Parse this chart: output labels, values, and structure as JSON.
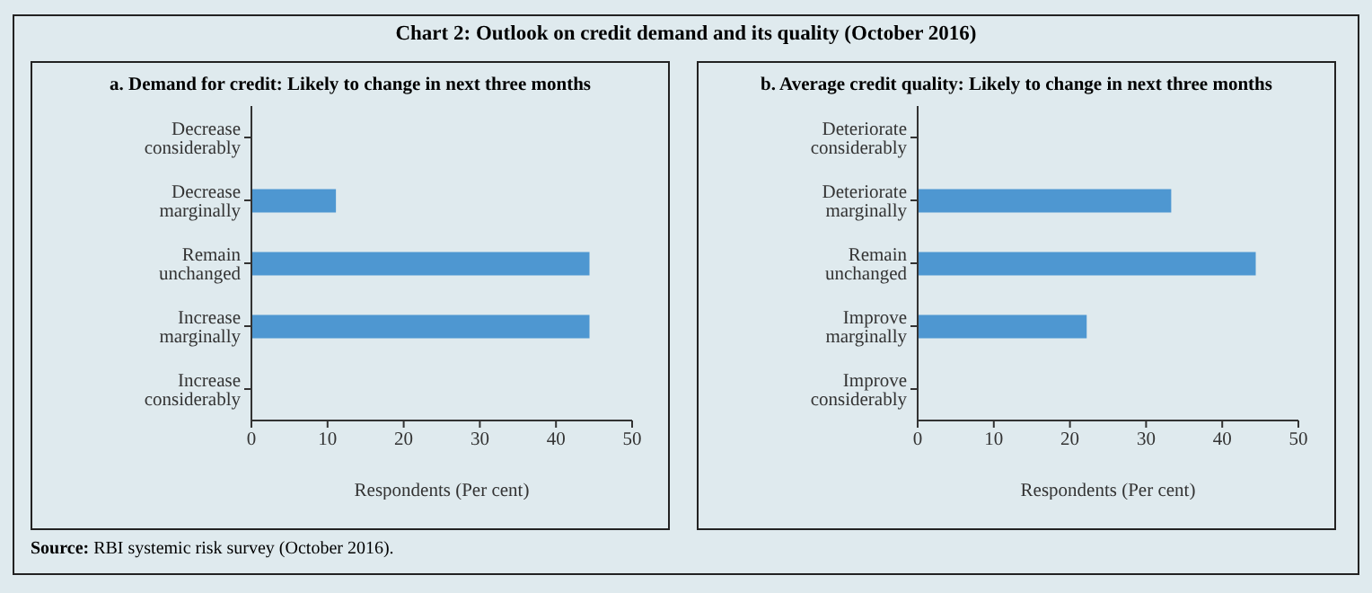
{
  "chart_data": [
    {
      "type": "bar",
      "orientation": "horizontal",
      "title": "a. Demand for credit: Likely to change in next three months",
      "xlabel": "Respondents (Per cent)",
      "categories": [
        "Decrease considerably",
        "Decrease marginally",
        "Remain unchanged",
        "Increase marginally",
        "Increase considerably"
      ],
      "values": [
        0,
        11.1,
        44.4,
        44.4,
        0
      ],
      "color": "#4e97d1",
      "xlim": [
        0,
        50
      ],
      "xticks": [
        0,
        10,
        20,
        30,
        40,
        50
      ],
      "grid": false,
      "legend": false,
      "annotations": [
        "Chart 2: Outlook on credit demand and its quality (October 2016)",
        "Source: RBI systemic risk survey (October 2016)."
      ]
    },
    {
      "type": "bar",
      "orientation": "horizontal",
      "title": "b. Average credit quality: Likely to change in next three months",
      "xlabel": "Respondents (Per cent)",
      "categories": [
        "Deteriorate considerably",
        "Deteriorate marginally",
        "Remain unchanged",
        "Improve marginally",
        "Improve considerably"
      ],
      "values": [
        0,
        33.3,
        44.4,
        22.2,
        0
      ],
      "color": "#4e97d1",
      "xlim": [
        0,
        50
      ],
      "xticks": [
        0,
        10,
        20,
        30,
        40,
        50
      ],
      "grid": false,
      "legend": false
    }
  ]
}
